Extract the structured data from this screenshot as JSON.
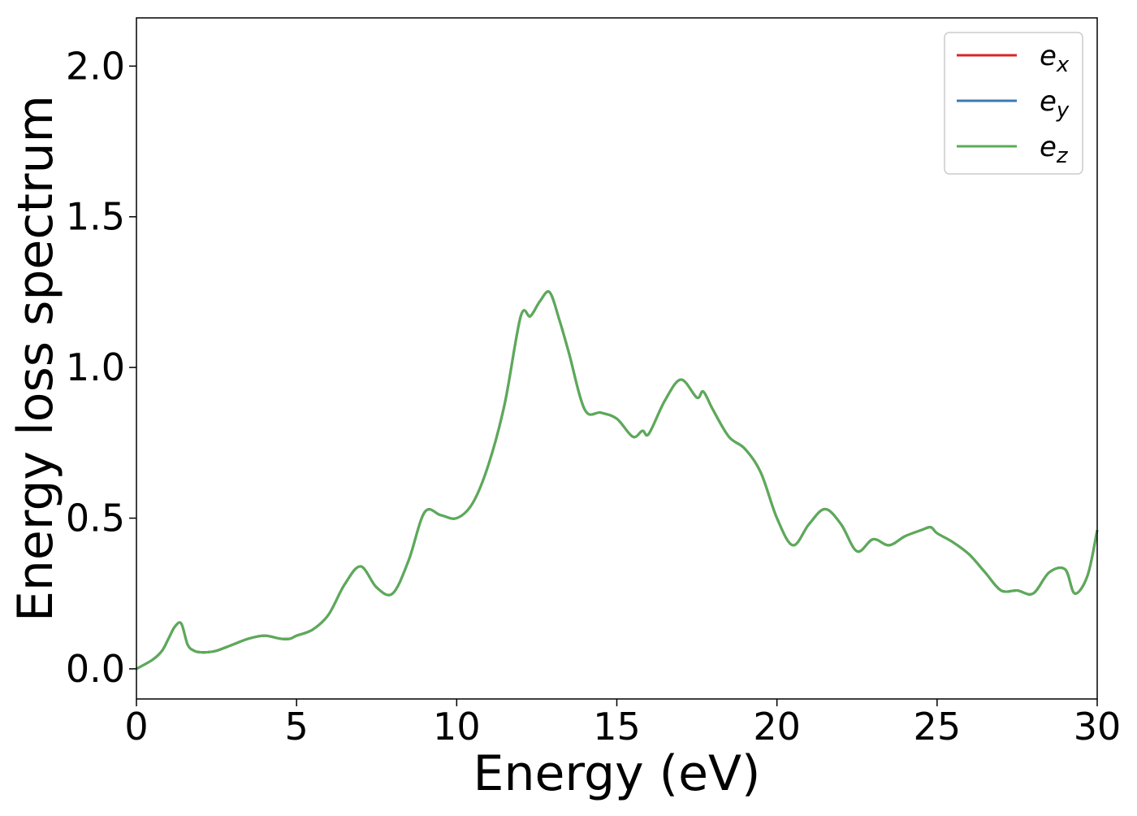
{
  "chart_data": {
    "type": "line",
    "title": "",
    "xlabel": "Energy (eV)",
    "ylabel": "Energy loss spectrum",
    "xlim": [
      0,
      30
    ],
    "ylim": [
      -0.1,
      2.16
    ],
    "xticks": [
      0,
      5,
      10,
      15,
      20,
      25,
      30
    ],
    "xtick_labels": [
      "0",
      "5",
      "10",
      "15",
      "20",
      "25",
      "30"
    ],
    "yticks": [
      0.0,
      0.5,
      1.0,
      1.5,
      2.0
    ],
    "ytick_labels": [
      "0.0",
      "0.5",
      "1.0",
      "1.5",
      "2.0"
    ],
    "grid": false,
    "legend_position": "top-right",
    "x": [
      0,
      0.5,
      0.8,
      1.0,
      1.2,
      1.4,
      1.6,
      1.8,
      2.0,
      2.2,
      2.5,
      3.0,
      3.5,
      4.0,
      4.5,
      4.8,
      5.0,
      5.5,
      6.0,
      6.5,
      7.0,
      7.5,
      8.0,
      8.5,
      9.0,
      9.5,
      10.0,
      10.5,
      11.0,
      11.5,
      12.0,
      12.3,
      12.6,
      12.9,
      13.2,
      13.5,
      14.0,
      14.5,
      15.0,
      15.5,
      15.8,
      16.0,
      16.5,
      17.0,
      17.5,
      17.7,
      18.0,
      18.5,
      19.0,
      19.5,
      20.0,
      20.5,
      21.0,
      21.5,
      22.0,
      22.5,
      23.0,
      23.5,
      24.0,
      24.5,
      24.8,
      25.0,
      25.5,
      26.0,
      26.5,
      27.0,
      27.5,
      28.0,
      28.5,
      29.0,
      29.3,
      29.7,
      30.0
    ],
    "series": [
      {
        "name": "e_x",
        "color": "#d62728",
        "values": [
          0.0,
          0.03,
          0.06,
          0.1,
          0.14,
          0.15,
          0.08,
          0.06,
          0.055,
          0.055,
          0.06,
          0.08,
          0.1,
          0.11,
          0.1,
          0.1,
          0.11,
          0.13,
          0.18,
          0.28,
          0.34,
          0.27,
          0.25,
          0.36,
          0.52,
          0.51,
          0.5,
          0.55,
          0.68,
          0.88,
          1.17,
          1.17,
          1.22,
          1.25,
          1.16,
          1.05,
          0.86,
          0.85,
          0.83,
          0.77,
          0.79,
          0.78,
          0.89,
          0.96,
          0.9,
          0.92,
          0.86,
          0.77,
          0.73,
          0.65,
          0.5,
          0.41,
          0.48,
          0.53,
          0.48,
          0.39,
          0.43,
          0.41,
          0.44,
          0.46,
          0.47,
          0.45,
          0.42,
          0.38,
          0.32,
          0.26,
          0.26,
          0.25,
          0.32,
          0.33,
          0.25,
          0.31,
          0.46
        ]
      },
      {
        "name": "e_y",
        "color": "#3a7ab4",
        "values": [
          0.0,
          0.03,
          0.06,
          0.1,
          0.14,
          0.15,
          0.08,
          0.06,
          0.055,
          0.055,
          0.06,
          0.08,
          0.1,
          0.11,
          0.1,
          0.1,
          0.11,
          0.13,
          0.18,
          0.28,
          0.34,
          0.27,
          0.25,
          0.36,
          0.52,
          0.51,
          0.5,
          0.55,
          0.68,
          0.88,
          1.17,
          1.17,
          1.22,
          1.25,
          1.16,
          1.05,
          0.86,
          0.85,
          0.83,
          0.77,
          0.79,
          0.78,
          0.89,
          0.96,
          0.9,
          0.92,
          0.86,
          0.77,
          0.73,
          0.65,
          0.5,
          0.41,
          0.48,
          0.53,
          0.48,
          0.39,
          0.43,
          0.41,
          0.44,
          0.46,
          0.47,
          0.45,
          0.42,
          0.38,
          0.32,
          0.26,
          0.26,
          0.25,
          0.32,
          0.33,
          0.25,
          0.31,
          0.46
        ]
      },
      {
        "name": "e_z",
        "color": "#5aac55",
        "values": [
          0.0,
          0.03,
          0.06,
          0.1,
          0.14,
          0.15,
          0.08,
          0.06,
          0.055,
          0.055,
          0.06,
          0.08,
          0.1,
          0.11,
          0.1,
          0.1,
          0.11,
          0.13,
          0.18,
          0.28,
          0.34,
          0.27,
          0.25,
          0.36,
          0.52,
          0.51,
          0.5,
          0.55,
          0.68,
          0.88,
          1.17,
          1.17,
          1.22,
          1.25,
          1.16,
          1.05,
          0.86,
          0.85,
          0.83,
          0.77,
          0.79,
          0.78,
          0.89,
          0.96,
          0.9,
          0.92,
          0.86,
          0.77,
          0.73,
          0.65,
          0.5,
          0.41,
          0.48,
          0.53,
          0.48,
          0.39,
          0.43,
          0.41,
          0.44,
          0.46,
          0.47,
          0.45,
          0.42,
          0.38,
          0.32,
          0.26,
          0.26,
          0.25,
          0.32,
          0.33,
          0.25,
          0.31,
          0.46
        ]
      }
    ],
    "legend": [
      {
        "base": "e",
        "sub": "x",
        "color": "#d62728"
      },
      {
        "base": "e",
        "sub": "y",
        "color": "#3a7ab4"
      },
      {
        "base": "e",
        "sub": "z",
        "color": "#5aac55"
      }
    ]
  }
}
